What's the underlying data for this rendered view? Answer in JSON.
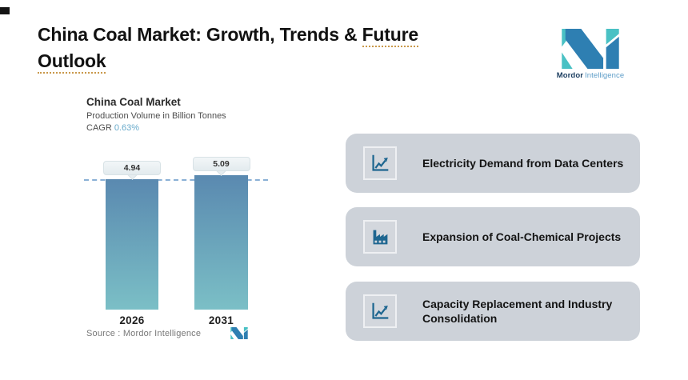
{
  "header": {
    "title_seg1": "China Coal Market: Growth, Trends & ",
    "title_seg2": "Future",
    "title_seg3": "Outlook",
    "underline_color": "#c9994b"
  },
  "logo": {
    "brand_bold": "Mordor",
    "brand_light": "Intelligence",
    "colors": {
      "teal": "#49c1c4",
      "blue": "#2e7fb2",
      "text_dark": "#1c3e60",
      "text_light": "#5d9dc8"
    }
  },
  "chart_data": {
    "type": "bar",
    "title": "China Coal Market",
    "subtitle": "Production Volume in Billion Tonnes",
    "cagr_label": "CAGR",
    "cagr_value": "0.63%",
    "categories": [
      "2026",
      "2031"
    ],
    "values": [
      4.94,
      5.09
    ],
    "value_labels": [
      "4.94",
      "5.09"
    ],
    "reference_line_value": 4.94,
    "grid": false,
    "source": "Source :  Mordor Intelligence",
    "bar_gradient_top": "#5a89b0",
    "bar_gradient_bottom": "#7bbfc6",
    "dashed_line_color": "#8ab0d6"
  },
  "drivers": {
    "cards": [
      {
        "icon": "line-chart-icon",
        "label": "Electricity Demand from Data Centers"
      },
      {
        "icon": "factory-icon",
        "label": "Expansion of Coal-Chemical Projects"
      },
      {
        "icon": "line-chart-icon",
        "label": "Capacity Replacement and Industry Consolidation"
      }
    ],
    "card_bg": "#cdd2d9",
    "icon_color": "#1e6690"
  }
}
